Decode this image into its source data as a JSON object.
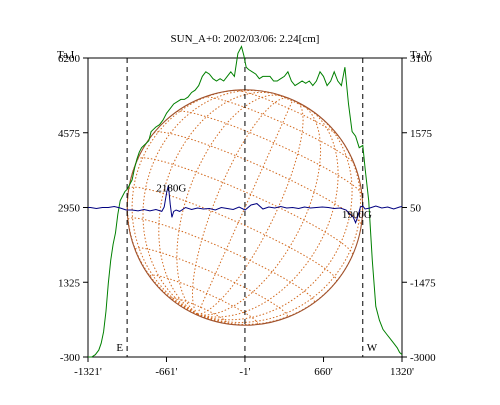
{
  "chart_data": {
    "type": "line",
    "title": "SUN_A+0: 2002/03/06: 2.24[cm]",
    "left_axis_title": "Ta,I",
    "right_axis_title": "Ta,V",
    "x_ticks": [
      {
        "value": -1321,
        "label": "-1321'"
      },
      {
        "value": -661,
        "label": "-661'"
      },
      {
        "value": -1,
        "label": "-1'"
      },
      {
        "value": 660,
        "label": "660'"
      },
      {
        "value": 1320,
        "label": "1320'"
      }
    ],
    "left_ticks": [
      {
        "value": 6200,
        "label": "6200"
      },
      {
        "value": 4575,
        "label": "4575"
      },
      {
        "value": 2950,
        "label": "2950"
      },
      {
        "value": 1325,
        "label": "1325"
      },
      {
        "value": -300,
        "label": "-300"
      }
    ],
    "right_ticks": [
      {
        "value": 3100,
        "label": "3100"
      },
      {
        "value": 1575,
        "label": "1575"
      },
      {
        "value": 50,
        "label": "50"
      },
      {
        "value": -1475,
        "label": "-1475"
      },
      {
        "value": -3000,
        "label": "-3000"
      }
    ],
    "xlim": [
      -1321,
      1320
    ],
    "ylim_left": [
      -300,
      6200
    ],
    "ylim_right": [
      -3000,
      3100
    ],
    "vlines": [
      {
        "x": -992,
        "label": "E"
      },
      {
        "x": -1,
        "label": ""
      },
      {
        "x": 990,
        "label": "W"
      }
    ],
    "annotations": [
      {
        "text": "2180G",
        "x": -620,
        "y_left": 3300
      },
      {
        "text": "1900G",
        "x": 940,
        "y_left": 2720
      }
    ],
    "disk": {
      "center_x": -1,
      "center_y_left": 2950,
      "radius": 990
    },
    "colors": {
      "stokes_i": "#008000",
      "stokes_v": "#000080",
      "disk": "#a0522d",
      "grid": "#d2691e"
    },
    "series": [
      {
        "axis": "left",
        "x": [
          -1321,
          -1290,
          -1260,
          -1230,
          -1210,
          -1190,
          -1170,
          -1150,
          -1130,
          -1110,
          -1090,
          -1070,
          -1050,
          -1030,
          -1010,
          -990,
          -970,
          -950,
          -930,
          -910,
          -890,
          -870,
          -850,
          -830,
          -810,
          -790,
          -770,
          -750,
          -720,
          -690,
          -660,
          -630,
          -600,
          -570,
          -540,
          -510,
          -480,
          -450,
          -420,
          -390,
          -360,
          -330,
          -300,
          -270,
          -240,
          -210,
          -180,
          -150,
          -120,
          -90,
          -60,
          -30,
          -10,
          10,
          30,
          60,
          90,
          120,
          150,
          180,
          210,
          240,
          270,
          300,
          330,
          360,
          390,
          420,
          450,
          480,
          510,
          540,
          570,
          600,
          630,
          660,
          690,
          720,
          750,
          780,
          810,
          840,
          870,
          900,
          930,
          960,
          990,
          1010,
          1040,
          1070,
          1100,
          1130,
          1160,
          1190,
          1220,
          1250,
          1280,
          1300,
          1320
        ],
        "values": [
          -300,
          -300,
          -250,
          -150,
          0,
          250,
          700,
          1300,
          1800,
          2150,
          2400,
          2800,
          3100,
          3200,
          3300,
          3350,
          3450,
          3550,
          3800,
          4000,
          4150,
          4250,
          4300,
          4350,
          4400,
          4600,
          4650,
          4700,
          4750,
          4850,
          5000,
          5100,
          5200,
          5250,
          5300,
          5300,
          5350,
          5450,
          5500,
          5600,
          5800,
          5900,
          5850,
          5750,
          5700,
          5750,
          5700,
          5800,
          5900,
          5800,
          6300,
          6450,
          6250,
          6000,
          5950,
          5900,
          5850,
          5750,
          5800,
          5800,
          5800,
          5700,
          5700,
          5750,
          5800,
          5900,
          5700,
          5600,
          5650,
          5700,
          5650,
          5700,
          5600,
          5700,
          5900,
          5800,
          5600,
          5700,
          5900,
          5700,
          5600,
          6000,
          5200,
          4600,
          4500,
          4250,
          4300,
          3800,
          3100,
          1800,
          800,
          500,
          300,
          200,
          100,
          0,
          -100,
          -200,
          -250
        ]
      },
      {
        "axis": "right",
        "x": [
          -1321,
          -1300,
          -1250,
          -1200,
          -1150,
          -1100,
          -1050,
          -1000,
          -950,
          -900,
          -850,
          -800,
          -750,
          -700,
          -680,
          -660,
          -645,
          -630,
          -615,
          -600,
          -580,
          -550,
          -500,
          -450,
          -400,
          -350,
          -300,
          -250,
          -200,
          -150,
          -100,
          -50,
          0,
          50,
          100,
          150,
          200,
          250,
          300,
          350,
          400,
          450,
          500,
          550,
          600,
          650,
          700,
          750,
          800,
          850,
          880,
          910,
          930,
          950,
          970,
          990,
          1010,
          1050,
          1100,
          1150,
          1200,
          1250,
          1300,
          1320
        ],
        "values": [
          50,
          50,
          30,
          50,
          50,
          70,
          40,
          0,
          0,
          -20,
          10,
          -20,
          10,
          -30,
          60,
          350,
          500,
          120,
          -150,
          -30,
          0,
          -30,
          50,
          10,
          40,
          20,
          30,
          0,
          50,
          30,
          10,
          60,
          0,
          100,
          130,
          20,
          60,
          40,
          70,
          40,
          50,
          30,
          60,
          40,
          50,
          60,
          50,
          30,
          40,
          0,
          -80,
          -150,
          -260,
          -120,
          60,
          80,
          20,
          40,
          80,
          40,
          60,
          20,
          60,
          70
        ]
      }
    ]
  }
}
